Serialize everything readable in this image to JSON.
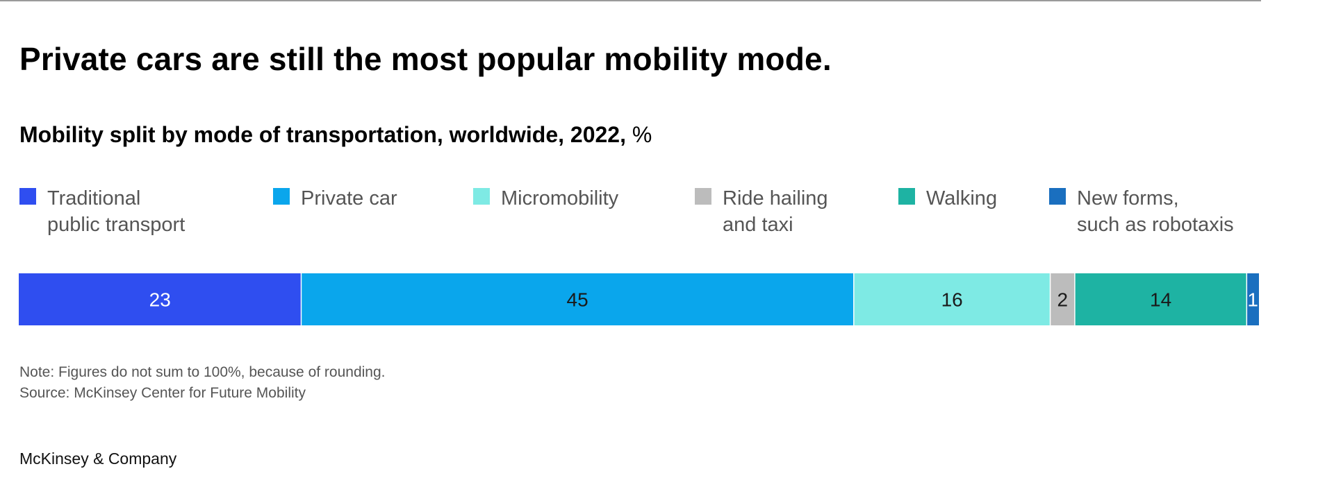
{
  "headline": "Private cars are still the most popular mobility mode.",
  "subtitle": "Mobility split by mode of transportation, worldwide, 2022,",
  "unit": "%",
  "note": "Note: Figures do not sum to 100%, because of rounding.",
  "source": "Source: McKinsey Center for Future Mobility",
  "brand": "McKinsey & Company",
  "chart_data": {
    "type": "bar",
    "orientation": "horizontal-stacked-100",
    "title": "Mobility split by mode of transportation, worldwide, 2022, %",
    "categories": [
      "Traditional public transport",
      "Private car",
      "Micromobility",
      "Ride hailing and taxi",
      "Walking",
      "New forms, such as robotaxis"
    ],
    "values": [
      23,
      45,
      16,
      2,
      14,
      1
    ],
    "value_labels": [
      "23",
      "45",
      "16",
      "2",
      "14",
      "1"
    ],
    "colors": [
      "#2f4ef0",
      "#0aa6ec",
      "#7eeae4",
      "#bcbcbc",
      "#1eb3a3",
      "#1a6fbf"
    ],
    "label_colors": [
      "#ffffff",
      "#1a1a1a",
      "#1a1a1a",
      "#1a1a1a",
      "#1a1a1a",
      "#ffffff"
    ],
    "legend": {
      "placement": "top",
      "items": [
        {
          "label": "Traditional\npublic transport",
          "color": "#2f4ef0"
        },
        {
          "label": "Private car",
          "color": "#0aa6ec"
        },
        {
          "label": "Micromobility",
          "color": "#7eeae4"
        },
        {
          "label": "Ride hailing\nand taxi",
          "color": "#bcbcbc"
        },
        {
          "label": "Walking",
          "color": "#1eb3a3"
        },
        {
          "label": "New forms,\nsuch as robotaxis",
          "color": "#1a6fbf"
        }
      ]
    },
    "grid": false
  }
}
